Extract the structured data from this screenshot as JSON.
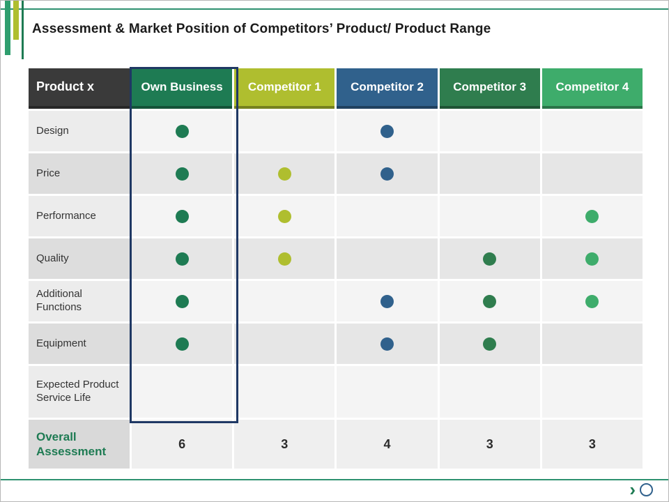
{
  "title": "Assessment & Market Position of Competitors’ Product/ Product Range",
  "accent": {
    "rule_color": "#2E9170",
    "highlight_border_color": "#1F3864",
    "decor_bars": [
      {
        "name": "green-bar",
        "color": "#2F9E6E"
      },
      {
        "name": "olive-bar",
        "color": "#AFBE2F"
      },
      {
        "name": "teal-bar",
        "color": "#1E7B53"
      }
    ]
  },
  "table": {
    "corner_label": "Product x",
    "corner_color": "#3A3A3A",
    "columns": [
      {
        "label": "Own Business",
        "color": "#1E7B53"
      },
      {
        "label": "Competitor 1",
        "color": "#AFBE2F"
      },
      {
        "label": "Competitor 2",
        "color": "#30618C"
      },
      {
        "label": "Competitor 3",
        "color": "#2F7D4E"
      },
      {
        "label": "Competitor 4",
        "color": "#3EAC6B"
      }
    ],
    "rows": [
      {
        "label": "Design",
        "dots": [
          true,
          false,
          true,
          false,
          false
        ]
      },
      {
        "label": "Price",
        "dots": [
          true,
          true,
          true,
          false,
          false
        ]
      },
      {
        "label": "Performance",
        "dots": [
          true,
          true,
          false,
          false,
          true
        ]
      },
      {
        "label": "Quality",
        "dots": [
          true,
          true,
          false,
          true,
          true
        ]
      },
      {
        "label": "Additional Functions",
        "dots": [
          true,
          false,
          true,
          true,
          true
        ]
      },
      {
        "label": "Equipment",
        "dots": [
          true,
          false,
          true,
          true,
          false
        ]
      },
      {
        "label": "Expected Product Service Life",
        "dots": [
          false,
          false,
          false,
          false,
          false
        ]
      }
    ],
    "summary": {
      "label": "Overall Assessment",
      "values": [
        "6",
        "3",
        "4",
        "3",
        "3"
      ]
    }
  },
  "footer": {
    "chevron": "›"
  }
}
